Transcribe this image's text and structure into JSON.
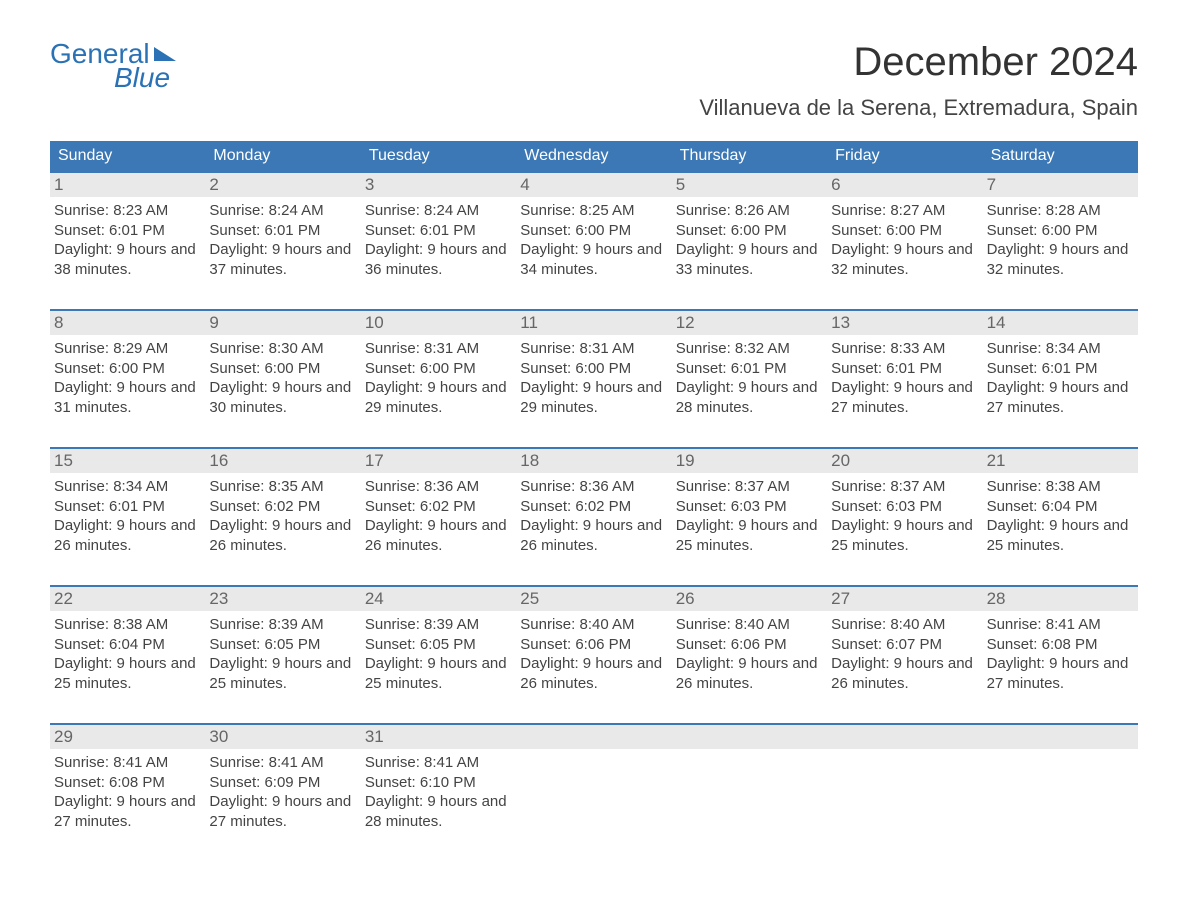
{
  "logo": {
    "word1": "General",
    "word2": "Blue"
  },
  "title": "December 2024",
  "subtitle": "Villanueva de la Serena, Extremadura, Spain",
  "colors": {
    "primary": "#3b78b5",
    "logo": "#2a72b5",
    "daynum_bg": "#e9e9e9",
    "text": "#444444",
    "title": "#333333",
    "background": "#ffffff"
  },
  "weekdays": [
    "Sunday",
    "Monday",
    "Tuesday",
    "Wednesday",
    "Thursday",
    "Friday",
    "Saturday"
  ],
  "labels": {
    "sunrise": "Sunrise: ",
    "sunset": "Sunset: ",
    "daylight": "Daylight: "
  },
  "weeks": [
    [
      {
        "n": "1",
        "sr": "8:23 AM",
        "ss": "6:01 PM",
        "dl": "9 hours and 38 minutes."
      },
      {
        "n": "2",
        "sr": "8:24 AM",
        "ss": "6:01 PM",
        "dl": "9 hours and 37 minutes."
      },
      {
        "n": "3",
        "sr": "8:24 AM",
        "ss": "6:01 PM",
        "dl": "9 hours and 36 minutes."
      },
      {
        "n": "4",
        "sr": "8:25 AM",
        "ss": "6:00 PM",
        "dl": "9 hours and 34 minutes."
      },
      {
        "n": "5",
        "sr": "8:26 AM",
        "ss": "6:00 PM",
        "dl": "9 hours and 33 minutes."
      },
      {
        "n": "6",
        "sr": "8:27 AM",
        "ss": "6:00 PM",
        "dl": "9 hours and 32 minutes."
      },
      {
        "n": "7",
        "sr": "8:28 AM",
        "ss": "6:00 PM",
        "dl": "9 hours and 32 minutes."
      }
    ],
    [
      {
        "n": "8",
        "sr": "8:29 AM",
        "ss": "6:00 PM",
        "dl": "9 hours and 31 minutes."
      },
      {
        "n": "9",
        "sr": "8:30 AM",
        "ss": "6:00 PM",
        "dl": "9 hours and 30 minutes."
      },
      {
        "n": "10",
        "sr": "8:31 AM",
        "ss": "6:00 PM",
        "dl": "9 hours and 29 minutes."
      },
      {
        "n": "11",
        "sr": "8:31 AM",
        "ss": "6:00 PM",
        "dl": "9 hours and 29 minutes."
      },
      {
        "n": "12",
        "sr": "8:32 AM",
        "ss": "6:01 PM",
        "dl": "9 hours and 28 minutes."
      },
      {
        "n": "13",
        "sr": "8:33 AM",
        "ss": "6:01 PM",
        "dl": "9 hours and 27 minutes."
      },
      {
        "n": "14",
        "sr": "8:34 AM",
        "ss": "6:01 PM",
        "dl": "9 hours and 27 minutes."
      }
    ],
    [
      {
        "n": "15",
        "sr": "8:34 AM",
        "ss": "6:01 PM",
        "dl": "9 hours and 26 minutes."
      },
      {
        "n": "16",
        "sr": "8:35 AM",
        "ss": "6:02 PM",
        "dl": "9 hours and 26 minutes."
      },
      {
        "n": "17",
        "sr": "8:36 AM",
        "ss": "6:02 PM",
        "dl": "9 hours and 26 minutes."
      },
      {
        "n": "18",
        "sr": "8:36 AM",
        "ss": "6:02 PM",
        "dl": "9 hours and 26 minutes."
      },
      {
        "n": "19",
        "sr": "8:37 AM",
        "ss": "6:03 PM",
        "dl": "9 hours and 25 minutes."
      },
      {
        "n": "20",
        "sr": "8:37 AM",
        "ss": "6:03 PM",
        "dl": "9 hours and 25 minutes."
      },
      {
        "n": "21",
        "sr": "8:38 AM",
        "ss": "6:04 PM",
        "dl": "9 hours and 25 minutes."
      }
    ],
    [
      {
        "n": "22",
        "sr": "8:38 AM",
        "ss": "6:04 PM",
        "dl": "9 hours and 25 minutes."
      },
      {
        "n": "23",
        "sr": "8:39 AM",
        "ss": "6:05 PM",
        "dl": "9 hours and 25 minutes."
      },
      {
        "n": "24",
        "sr": "8:39 AM",
        "ss": "6:05 PM",
        "dl": "9 hours and 25 minutes."
      },
      {
        "n": "25",
        "sr": "8:40 AM",
        "ss": "6:06 PM",
        "dl": "9 hours and 26 minutes."
      },
      {
        "n": "26",
        "sr": "8:40 AM",
        "ss": "6:06 PM",
        "dl": "9 hours and 26 minutes."
      },
      {
        "n": "27",
        "sr": "8:40 AM",
        "ss": "6:07 PM",
        "dl": "9 hours and 26 minutes."
      },
      {
        "n": "28",
        "sr": "8:41 AM",
        "ss": "6:08 PM",
        "dl": "9 hours and 27 minutes."
      }
    ],
    [
      {
        "n": "29",
        "sr": "8:41 AM",
        "ss": "6:08 PM",
        "dl": "9 hours and 27 minutes."
      },
      {
        "n": "30",
        "sr": "8:41 AM",
        "ss": "6:09 PM",
        "dl": "9 hours and 27 minutes."
      },
      {
        "n": "31",
        "sr": "8:41 AM",
        "ss": "6:10 PM",
        "dl": "9 hours and 28 minutes."
      },
      null,
      null,
      null,
      null
    ]
  ]
}
